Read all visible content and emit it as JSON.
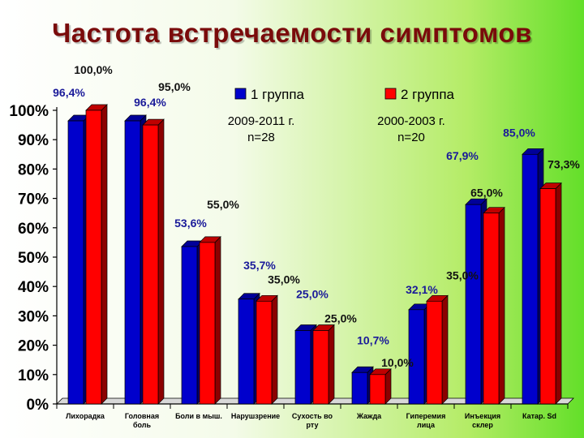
{
  "slide": {
    "title": "Частота встречаемости симптомов"
  },
  "chart_data": {
    "type": "bar",
    "title": "",
    "xlabel": "",
    "ylabel": "",
    "ylim": [
      0,
      100
    ],
    "y_ticks": [
      "0%",
      "10%",
      "20%",
      "30%",
      "40%",
      "50%",
      "60%",
      "70%",
      "80%",
      "90%",
      "100%"
    ],
    "grid": false,
    "legend_position": "top",
    "categories": [
      [
        "Лихорадка"
      ],
      [
        "Головная",
        "боль"
      ],
      [
        "Боли в мыш."
      ],
      [
        "Нарушзрение"
      ],
      [
        "Сухость во",
        "рту"
      ],
      [
        "Жажда"
      ],
      [
        "Гиперемия",
        "лица"
      ],
      [
        "Инъекция",
        "склер"
      ],
      [
        "Катар. Sd"
      ]
    ],
    "series": [
      {
        "name": "1 группа",
        "note": [
          "2009-2011 г.",
          "n=28"
        ],
        "color": "#0000cc",
        "values": [
          96.4,
          96.4,
          53.6,
          35.7,
          25.0,
          10.7,
          32.1,
          67.9,
          85.0
        ],
        "labels": [
          "96,4%",
          "96,4%",
          "53,6%",
          "35,7%",
          "25,0%",
          "10,7%",
          "32,1%",
          "67,9%",
          "85,0%"
        ]
      },
      {
        "name": "2 группа",
        "note": [
          "2000-2003 г.",
          "n=20"
        ],
        "color": "#ff0000",
        "values": [
          100.0,
          95.0,
          55.0,
          35.0,
          25.0,
          10.0,
          35.0,
          65.0,
          73.3
        ],
        "labels": [
          "100,0%",
          "95,0%",
          "55,0%",
          "35,0%",
          "25,0%",
          "10,0%",
          "35,0%",
          "65,0%",
          "73,3%"
        ]
      }
    ]
  }
}
